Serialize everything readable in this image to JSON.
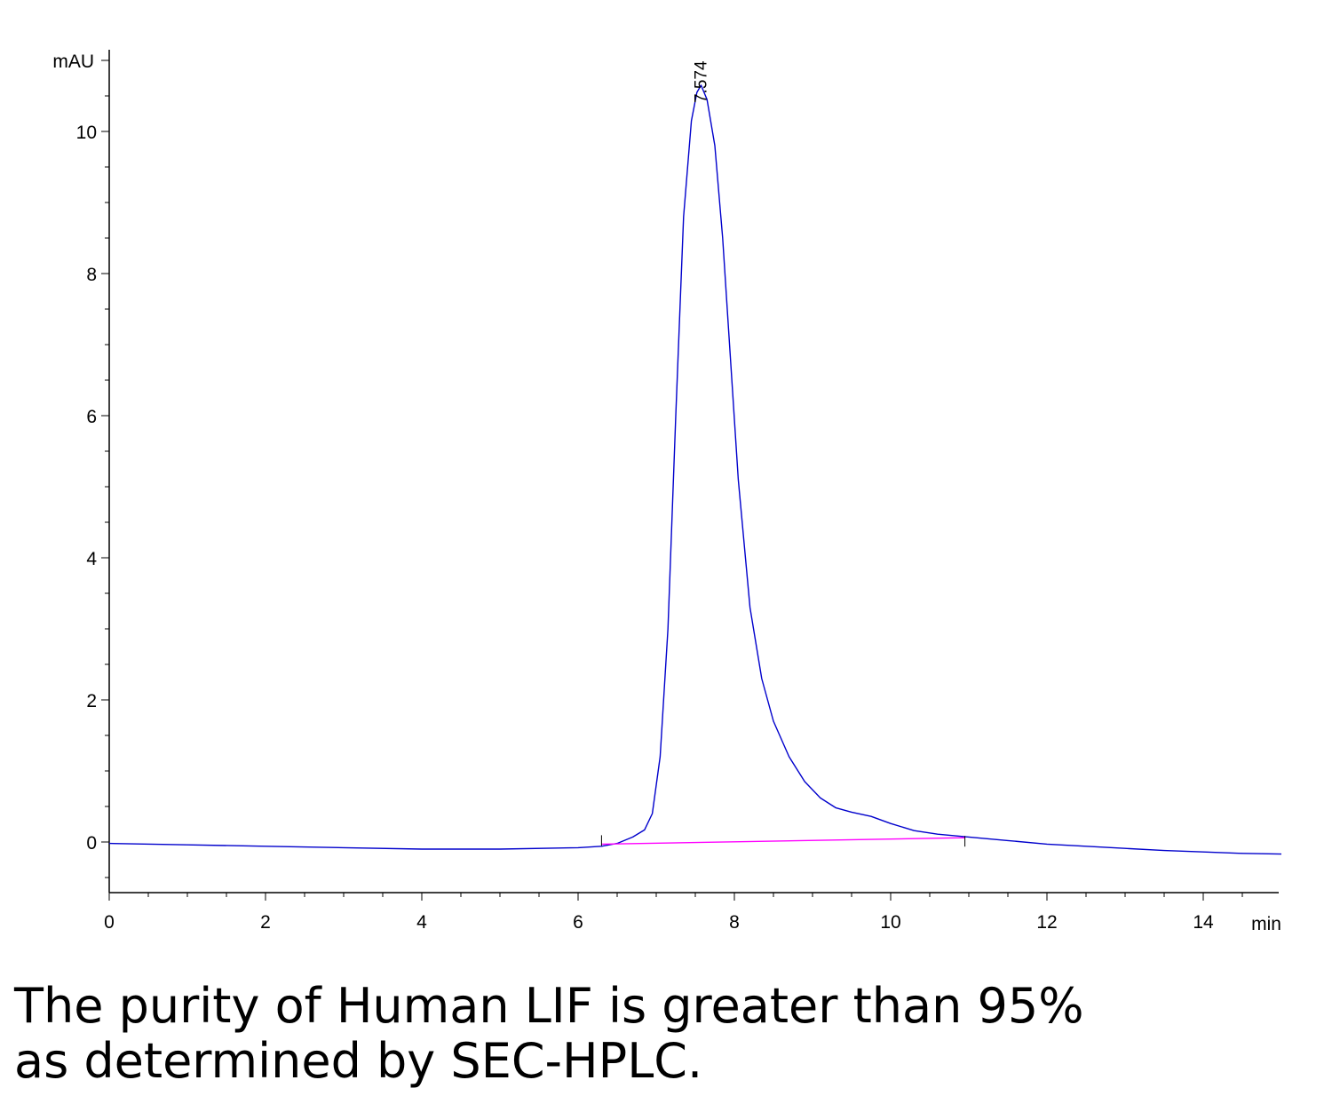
{
  "chart_data": {
    "type": "line",
    "y_unit": "mAU",
    "x_unit": "min",
    "xlim": [
      0,
      15
    ],
    "ylim": [
      -0.7,
      11.05
    ],
    "x_ticks": [
      0,
      2,
      4,
      6,
      8,
      10,
      12,
      14
    ],
    "y_ticks": [
      0,
      2,
      4,
      6,
      8,
      10
    ],
    "grid": false,
    "peak_label": "7.574",
    "peak": {
      "x": 7.574,
      "y": 10.65
    },
    "series": [
      {
        "color": "#0000cc",
        "points": [
          [
            0,
            -0.02
          ],
          [
            1,
            -0.04
          ],
          [
            2,
            -0.06
          ],
          [
            3,
            -0.08
          ],
          [
            4,
            -0.1
          ],
          [
            5,
            -0.1
          ],
          [
            6,
            -0.08
          ],
          [
            6.3,
            -0.06
          ],
          [
            6.5,
            -0.02
          ],
          [
            6.7,
            0.07
          ],
          [
            6.85,
            0.17
          ],
          [
            6.95,
            0.4
          ],
          [
            7.05,
            1.2
          ],
          [
            7.15,
            3.0
          ],
          [
            7.25,
            6.0
          ],
          [
            7.35,
            8.8
          ],
          [
            7.45,
            10.15
          ],
          [
            7.52,
            10.55
          ],
          [
            7.574,
            10.65
          ],
          [
            7.65,
            10.45
          ],
          [
            7.75,
            9.8
          ],
          [
            7.85,
            8.5
          ],
          [
            7.95,
            6.8
          ],
          [
            8.05,
            5.1
          ],
          [
            8.2,
            3.3
          ],
          [
            8.35,
            2.3
          ],
          [
            8.5,
            1.7
          ],
          [
            8.7,
            1.2
          ],
          [
            8.9,
            0.85
          ],
          [
            9.1,
            0.62
          ],
          [
            9.3,
            0.48
          ],
          [
            9.5,
            0.42
          ],
          [
            9.75,
            0.36
          ],
          [
            10.0,
            0.26
          ],
          [
            10.3,
            0.16
          ],
          [
            10.6,
            0.11
          ],
          [
            11.0,
            0.07
          ],
          [
            11.5,
            0.02
          ],
          [
            12.0,
            -0.03
          ],
          [
            12.5,
            -0.06
          ],
          [
            13.0,
            -0.09
          ],
          [
            13.5,
            -0.12
          ],
          [
            14.0,
            -0.14
          ],
          [
            14.5,
            -0.16
          ],
          [
            15.0,
            -0.17
          ]
        ]
      },
      {
        "color": "#ff00ff",
        "points": [
          [
            6.3,
            -0.03
          ],
          [
            10.95,
            0.06
          ]
        ]
      }
    ]
  },
  "caption": {
    "line1": "The purity of Human LIF is greater than 95%",
    "line2": "as determined by SEC-HPLC."
  }
}
